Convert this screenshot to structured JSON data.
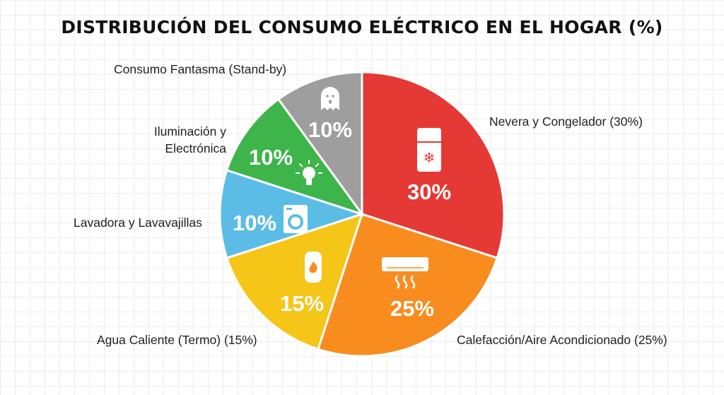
{
  "chart_data": {
    "type": "pie",
    "title": "DISTRIBUCIÓN DEL CONSUMO ELÉCTRICO EN EL HOGAR (%)",
    "slices": [
      {
        "label": "Nevera y Congelador (30%)",
        "value": 30,
        "value_label": "30%",
        "color": "#e53935",
        "icon": "fridge-icon"
      },
      {
        "label": "Calefacción/Aire Acondicionado (25%)",
        "value": 25,
        "value_label": "25%",
        "color": "#f98c1f",
        "icon": "air-conditioner-icon"
      },
      {
        "label": "Agua Caliente (Termo) (15%)",
        "value": 15,
        "value_label": "15%",
        "color": "#f5c518",
        "icon": "water-heater-icon"
      },
      {
        "label": "Lavadora y Lavavajillas",
        "value": 10,
        "value_label": "10%",
        "color": "#5bbde6",
        "icon": "washing-machine-icon"
      },
      {
        "label": "Iluminación y Electrónica",
        "value": 10,
        "value_label": "10%",
        "color": "#3db54a",
        "icon": "lightbulb-icon"
      },
      {
        "label": "Consumo Fantasma (Stand-by)",
        "value": 10,
        "value_label": "10%",
        "color": "#9e9e9e",
        "icon": "ghost-icon"
      }
    ],
    "start": "top",
    "direction": "clockwise"
  }
}
